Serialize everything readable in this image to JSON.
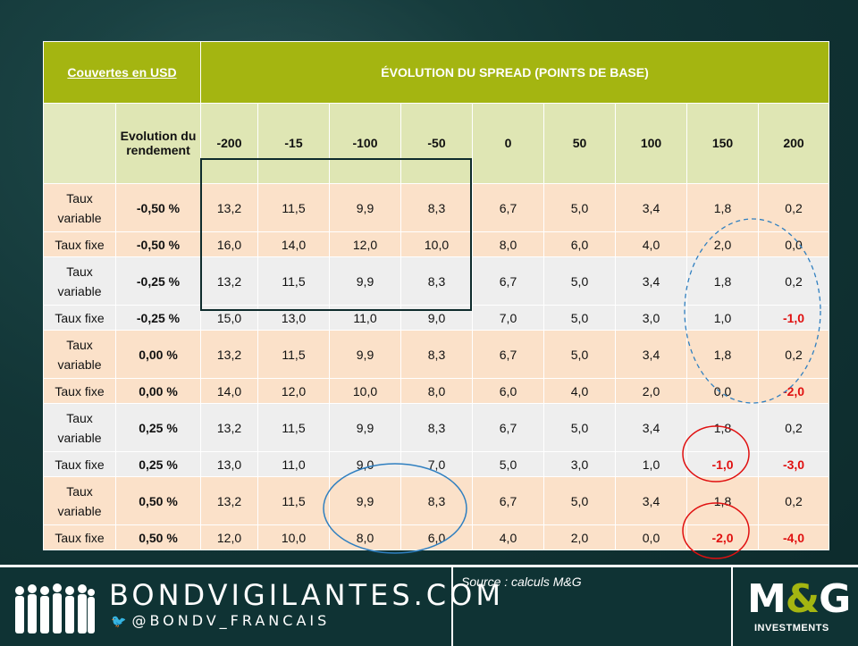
{
  "header": {
    "link_label": "Couvertes en USD",
    "title": "ÉVOLUTION DU SPREAD (POINTS DE BASE)",
    "yield_change_label": "Evolution du rendement",
    "spread_columns": [
      "-200",
      "-15",
      "-100",
      "-50",
      "0",
      "50",
      "100",
      "150",
      "200"
    ]
  },
  "rows": [
    {
      "type": "Taux variable",
      "yield": "-0,50 %",
      "values": [
        "13,2",
        "11,5",
        "9,9",
        "8,3",
        "6,7",
        "5,0",
        "3,4",
        "1,8",
        "0,2"
      ]
    },
    {
      "type": "Taux fixe",
      "yield": "-0,50 %",
      "values": [
        "16,0",
        "14,0",
        "12,0",
        "10,0",
        "8,0",
        "6,0",
        "4,0",
        "2,0",
        "0,0"
      ]
    },
    {
      "type": "Taux variable",
      "yield": "-0,25 %",
      "values": [
        "13,2",
        "11,5",
        "9,9",
        "8,3",
        "6,7",
        "5,0",
        "3,4",
        "1,8",
        "0,2"
      ]
    },
    {
      "type": "Taux fixe",
      "yield": "-0,25 %",
      "values": [
        "15,0",
        "13,0",
        "11,0",
        "9,0",
        "7,0",
        "5,0",
        "3,0",
        "1,0",
        "-1,0"
      ]
    },
    {
      "type": "Taux variable",
      "yield": "0,00 %",
      "values": [
        "13,2",
        "11,5",
        "9,9",
        "8,3",
        "6,7",
        "5,0",
        "3,4",
        "1,8",
        "0,2"
      ]
    },
    {
      "type": "Taux fixe",
      "yield": "0,00 %",
      "values": [
        "14,0",
        "12,0",
        "10,0",
        "8,0",
        "6,0",
        "4,0",
        "2,0",
        "0,0",
        "-2,0"
      ]
    },
    {
      "type": "Taux variable",
      "yield": "0,25 %",
      "values": [
        "13,2",
        "11,5",
        "9,9",
        "8,3",
        "6,7",
        "5,0",
        "3,4",
        "1,8",
        "0,2"
      ]
    },
    {
      "type": "Taux fixe",
      "yield": "0,25 %",
      "values": [
        "13,0",
        "11,0",
        "9,0",
        "7,0",
        "5,0",
        "3,0",
        "1,0",
        "-1,0",
        "-3,0"
      ]
    },
    {
      "type": "Taux variable",
      "yield": "0,50 %",
      "values": [
        "13,2",
        "11,5",
        "9,9",
        "8,3",
        "6,7",
        "5,0",
        "3,4",
        "1,8",
        "0,2"
      ]
    },
    {
      "type": "Taux fixe",
      "yield": "0,50 %",
      "values": [
        "12,0",
        "10,0",
        "8,0",
        "6,0",
        "4,0",
        "2,0",
        "0,0",
        "-2,0",
        "-4,0"
      ]
    }
  ],
  "footer": {
    "brand": "BONDVIGILANTES.COM",
    "twitter_handle": "@BONDV_FRANCAIS",
    "source": "Source : calculs M&G",
    "logo_main": "M&G",
    "logo_sub": "INVESTMENTS"
  },
  "colors": {
    "header_green": "#a4b511",
    "subheader_light": "#dfe6b4",
    "row_peach": "#fbe1c9",
    "row_grey": "#eeeeee",
    "negative_red": "#e01010",
    "footer_dark": "#0f3334"
  },
  "annotations": {
    "box_color": "#0e2b2c",
    "dashed_ellipse_color": "#2f7fc0",
    "blue_ellipse_color": "#2f7fc0",
    "red_circle_color": "#e01010"
  }
}
